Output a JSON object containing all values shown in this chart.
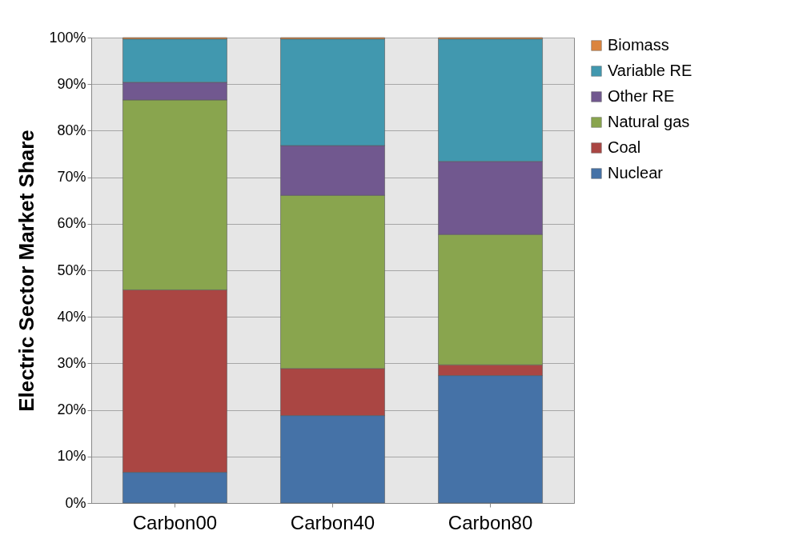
{
  "chart_data": {
    "type": "bar",
    "stacked": true,
    "ylabel": "Electric Sector Market Share",
    "categories": [
      "Carbon00",
      "Carbon40",
      "Carbon80"
    ],
    "series": [
      {
        "name": "Nuclear",
        "color": "#4572a7",
        "values": [
          6.6,
          18.8,
          27.4
        ]
      },
      {
        "name": "Coal",
        "color": "#aa4643",
        "values": [
          39.2,
          10.1,
          2.3
        ]
      },
      {
        "name": "Natural gas",
        "color": "#89a54e",
        "values": [
          40.8,
          37.2,
          28.0
        ]
      },
      {
        "name": "Other RE",
        "color": "#71588f",
        "values": [
          3.8,
          10.7,
          15.7
        ]
      },
      {
        "name": "Variable RE",
        "color": "#4198af",
        "values": [
          9.3,
          22.9,
          26.3
        ]
      },
      {
        "name": "Biomass",
        "color": "#db843d",
        "values": [
          0.3,
          0.3,
          0.3
        ]
      }
    ],
    "ylim": [
      0,
      100
    ],
    "yticks": [
      {
        "value": 0,
        "label": "0%"
      },
      {
        "value": 10,
        "label": "10%"
      },
      {
        "value": 20,
        "label": "20%"
      },
      {
        "value": 30,
        "label": "30%"
      },
      {
        "value": 40,
        "label": "40%"
      },
      {
        "value": 50,
        "label": "50%"
      },
      {
        "value": 60,
        "label": "60%"
      },
      {
        "value": 70,
        "label": "70%"
      },
      {
        "value": 80,
        "label": "80%"
      },
      {
        "value": 90,
        "label": "90%"
      },
      {
        "value": 100,
        "label": "100%"
      }
    ],
    "grid": "y",
    "legend": "right"
  }
}
